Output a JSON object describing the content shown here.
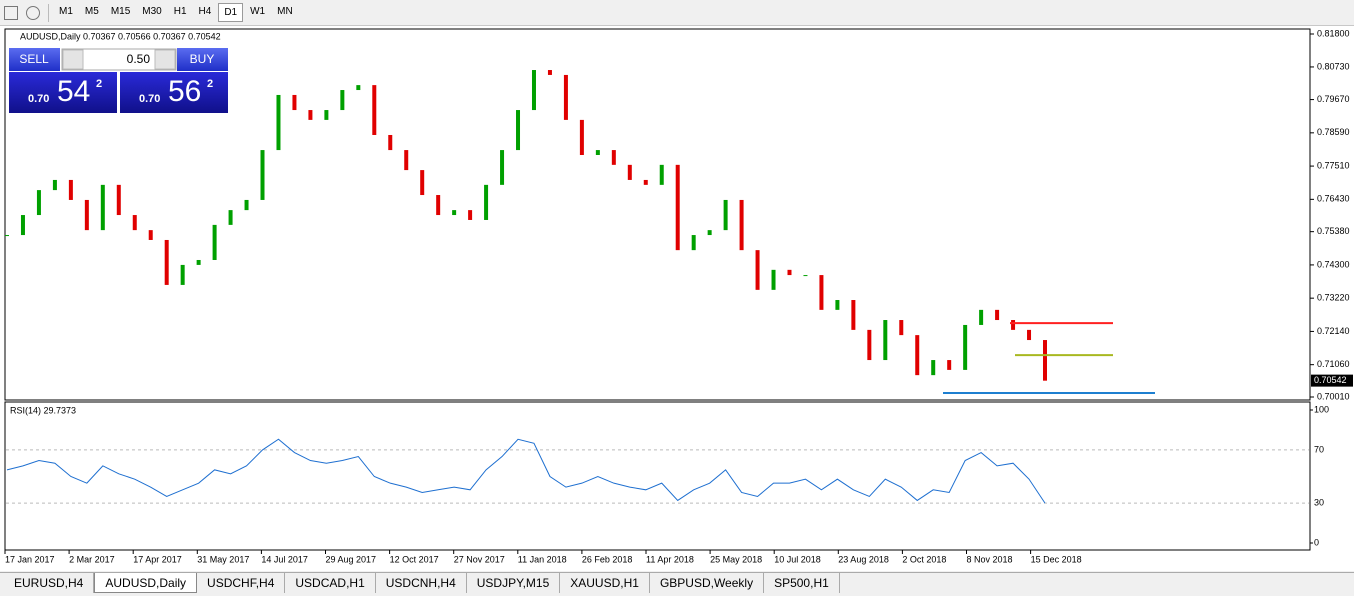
{
  "toolbar": {
    "periods": [
      "M1",
      "M5",
      "M15",
      "M30",
      "H1",
      "H4",
      "D1",
      "W1",
      "MN"
    ],
    "active": 6
  },
  "chart": {
    "header": "AUDUSD,Daily  0.70367 0.70566 0.70367 0.70542",
    "trade_panel": {
      "sell": "SELL",
      "lots": "0.50",
      "buy": "BUY",
      "bid": {
        "big": "0.70",
        "pips": "54",
        "frac": "2"
      },
      "ask": {
        "big": "0.70",
        "pips": "56",
        "frac": "2"
      }
    },
    "price": {
      "type": "bar",
      "ylim": [
        0.7001,
        0.818
      ],
      "yticks": [
        {
          "value": 0.818,
          "label": "0.81800"
        },
        {
          "value": 0.8073,
          "label": "0.80730"
        },
        {
          "value": 0.7967,
          "label": "0.79670"
        },
        {
          "value": 0.7859,
          "label": "0.78590"
        },
        {
          "value": 0.7751,
          "label": "0.77510"
        },
        {
          "value": 0.7643,
          "label": "0.76430"
        },
        {
          "value": 0.7538,
          "label": "0.75380"
        },
        {
          "value": 0.743,
          "label": "0.74300"
        },
        {
          "value": 0.7322,
          "label": "0.73220"
        },
        {
          "value": 0.7214,
          "label": "0.72140"
        },
        {
          "value": 0.7106,
          "label": "0.71060"
        },
        {
          "value": 0.7001,
          "label": "0.70010"
        }
      ],
      "current": {
        "value": 0.70542,
        "label": "0.70542"
      },
      "up_color": "#00a000",
      "down_color": "#e00000",
      "closes": [
        0.7527,
        0.7592,
        0.7673,
        0.7706,
        0.7641,
        0.7543,
        0.769,
        0.7592,
        0.7543,
        0.7511,
        0.7365,
        0.743,
        0.7446,
        0.756,
        0.7608,
        0.7641,
        0.7803,
        0.7982,
        0.7933,
        0.7901,
        0.7933,
        0.7998,
        0.8014,
        0.7852,
        0.7803,
        0.7738,
        0.7657,
        0.7592,
        0.7608,
        0.7576,
        0.769,
        0.7803,
        0.7933,
        0.8063,
        0.8047,
        0.7901,
        0.7787,
        0.7803,
        0.7755,
        0.7706,
        0.769,
        0.7755,
        0.7478,
        0.7527,
        0.7543,
        0.7641,
        0.7478,
        0.7349,
        0.7414,
        0.7397,
        0.7397,
        0.7284,
        0.7316,
        0.7219,
        0.7121,
        0.7251,
        0.7202,
        0.7072,
        0.7121,
        0.7089,
        0.7235,
        0.7284,
        0.7251,
        0.7219,
        0.7186,
        0.7054
      ],
      "levels": [
        {
          "value": 0.7241,
          "color": "#ff2020"
        },
        {
          "value": 0.7137,
          "color": "#a8b820"
        },
        {
          "value": 0.7014,
          "color": "#1e7fd0"
        }
      ]
    },
    "rsi": {
      "type": "line",
      "label": "RSI(14) 29.7373",
      "color": "#1e6fd0",
      "ylim": [
        0,
        100
      ],
      "yticks": [
        100,
        70,
        30,
        0
      ],
      "values": [
        55,
        58,
        62,
        60,
        50,
        45,
        58,
        52,
        48,
        42,
        35,
        40,
        45,
        55,
        52,
        58,
        70,
        78,
        68,
        62,
        60,
        62,
        65,
        50,
        45,
        42,
        38,
        40,
        42,
        40,
        55,
        65,
        78,
        75,
        50,
        42,
        45,
        50,
        45,
        42,
        40,
        45,
        32,
        40,
        45,
        55,
        38,
        35,
        45,
        45,
        48,
        40,
        48,
        40,
        35,
        48,
        42,
        32,
        40,
        38,
        62,
        68,
        58,
        60,
        48,
        30
      ]
    },
    "dates": [
      "17 Jan 2017",
      "2 Mar 2017",
      "17 Apr 2017",
      "31 May 2017",
      "14 Jul 2017",
      "29 Aug 2017",
      "12 Oct 2017",
      "27 Nov 2017",
      "11 Jan 2018",
      "26 Feb 2018",
      "11 Apr 2018",
      "25 May 2018",
      "10 Jul 2018",
      "23 Aug 2018",
      "2 Oct 2018",
      "8 Nov 2018",
      "15 Dec 2018"
    ]
  },
  "tabs": {
    "items": [
      "EURUSD,H4",
      "AUDUSD,Daily",
      "USDCHF,H4",
      "USDCAD,H1",
      "USDCNH,H4",
      "USDJPY,M15",
      "XAUUSD,H1",
      "GBPUSD,Weekly",
      "SP500,H1"
    ],
    "active": 1
  }
}
